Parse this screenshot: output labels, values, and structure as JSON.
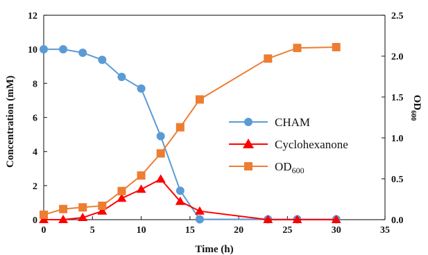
{
  "chart_data": {
    "type": "line",
    "xlabel": "Time (h)",
    "ylabel_left": "Concentration (mM)",
    "ylabel_right_base": "OD",
    "ylabel_right_sub": "600",
    "xlim": [
      0,
      35
    ],
    "ylim_left": [
      0,
      12
    ],
    "ylim_right": [
      0,
      2.5
    ],
    "x_ticks": [
      0,
      5,
      10,
      15,
      20,
      25,
      30,
      35
    ],
    "x_tick_labels": [
      "0",
      "5",
      "10",
      "15",
      "20",
      "25",
      "30",
      "35"
    ],
    "y_left_ticks": [
      0,
      2,
      4,
      6,
      8,
      10,
      12
    ],
    "y_left_tick_labels": [
      "0",
      "2",
      "4",
      "6",
      "8",
      "10",
      "12"
    ],
    "y_right_ticks": [
      0,
      0.5,
      1.0,
      1.5,
      2.0,
      2.5
    ],
    "y_right_tick_labels": [
      "0.0",
      "0.5",
      "1.0",
      "1.5",
      "2.0",
      "2.5"
    ],
    "grid": false,
    "legend_position": "center-right",
    "series": [
      {
        "name": "CHAM",
        "axis": "left",
        "marker": "circle",
        "color": "#5B9BD5",
        "x": [
          0,
          2,
          4,
          6,
          8,
          10,
          12,
          14,
          16,
          23,
          26,
          30
        ],
        "y": [
          10.0,
          10.0,
          9.8,
          9.38,
          8.38,
          7.7,
          4.9,
          1.7,
          0.02,
          0.02,
          0.02,
          0.02
        ]
      },
      {
        "name": "Cyclohexanone",
        "axis": "left",
        "marker": "triangle",
        "color": "#FF0000",
        "x": [
          0,
          2,
          4,
          6,
          8,
          10,
          12,
          14,
          16,
          23,
          26,
          30
        ],
        "y": [
          0.0,
          0.0,
          0.12,
          0.5,
          1.25,
          1.78,
          2.38,
          1.07,
          0.5,
          0.0,
          0.0,
          0.0
        ]
      },
      {
        "name": "OD",
        "name_sub": "600",
        "axis": "right",
        "marker": "square",
        "color": "#ED7D31",
        "x": [
          0,
          2,
          4,
          6,
          8,
          10,
          12,
          14,
          16,
          23,
          26,
          30
        ],
        "y": [
          0.06,
          0.13,
          0.15,
          0.17,
          0.35,
          0.54,
          0.81,
          1.13,
          1.47,
          1.97,
          2.1,
          2.11
        ]
      }
    ]
  }
}
